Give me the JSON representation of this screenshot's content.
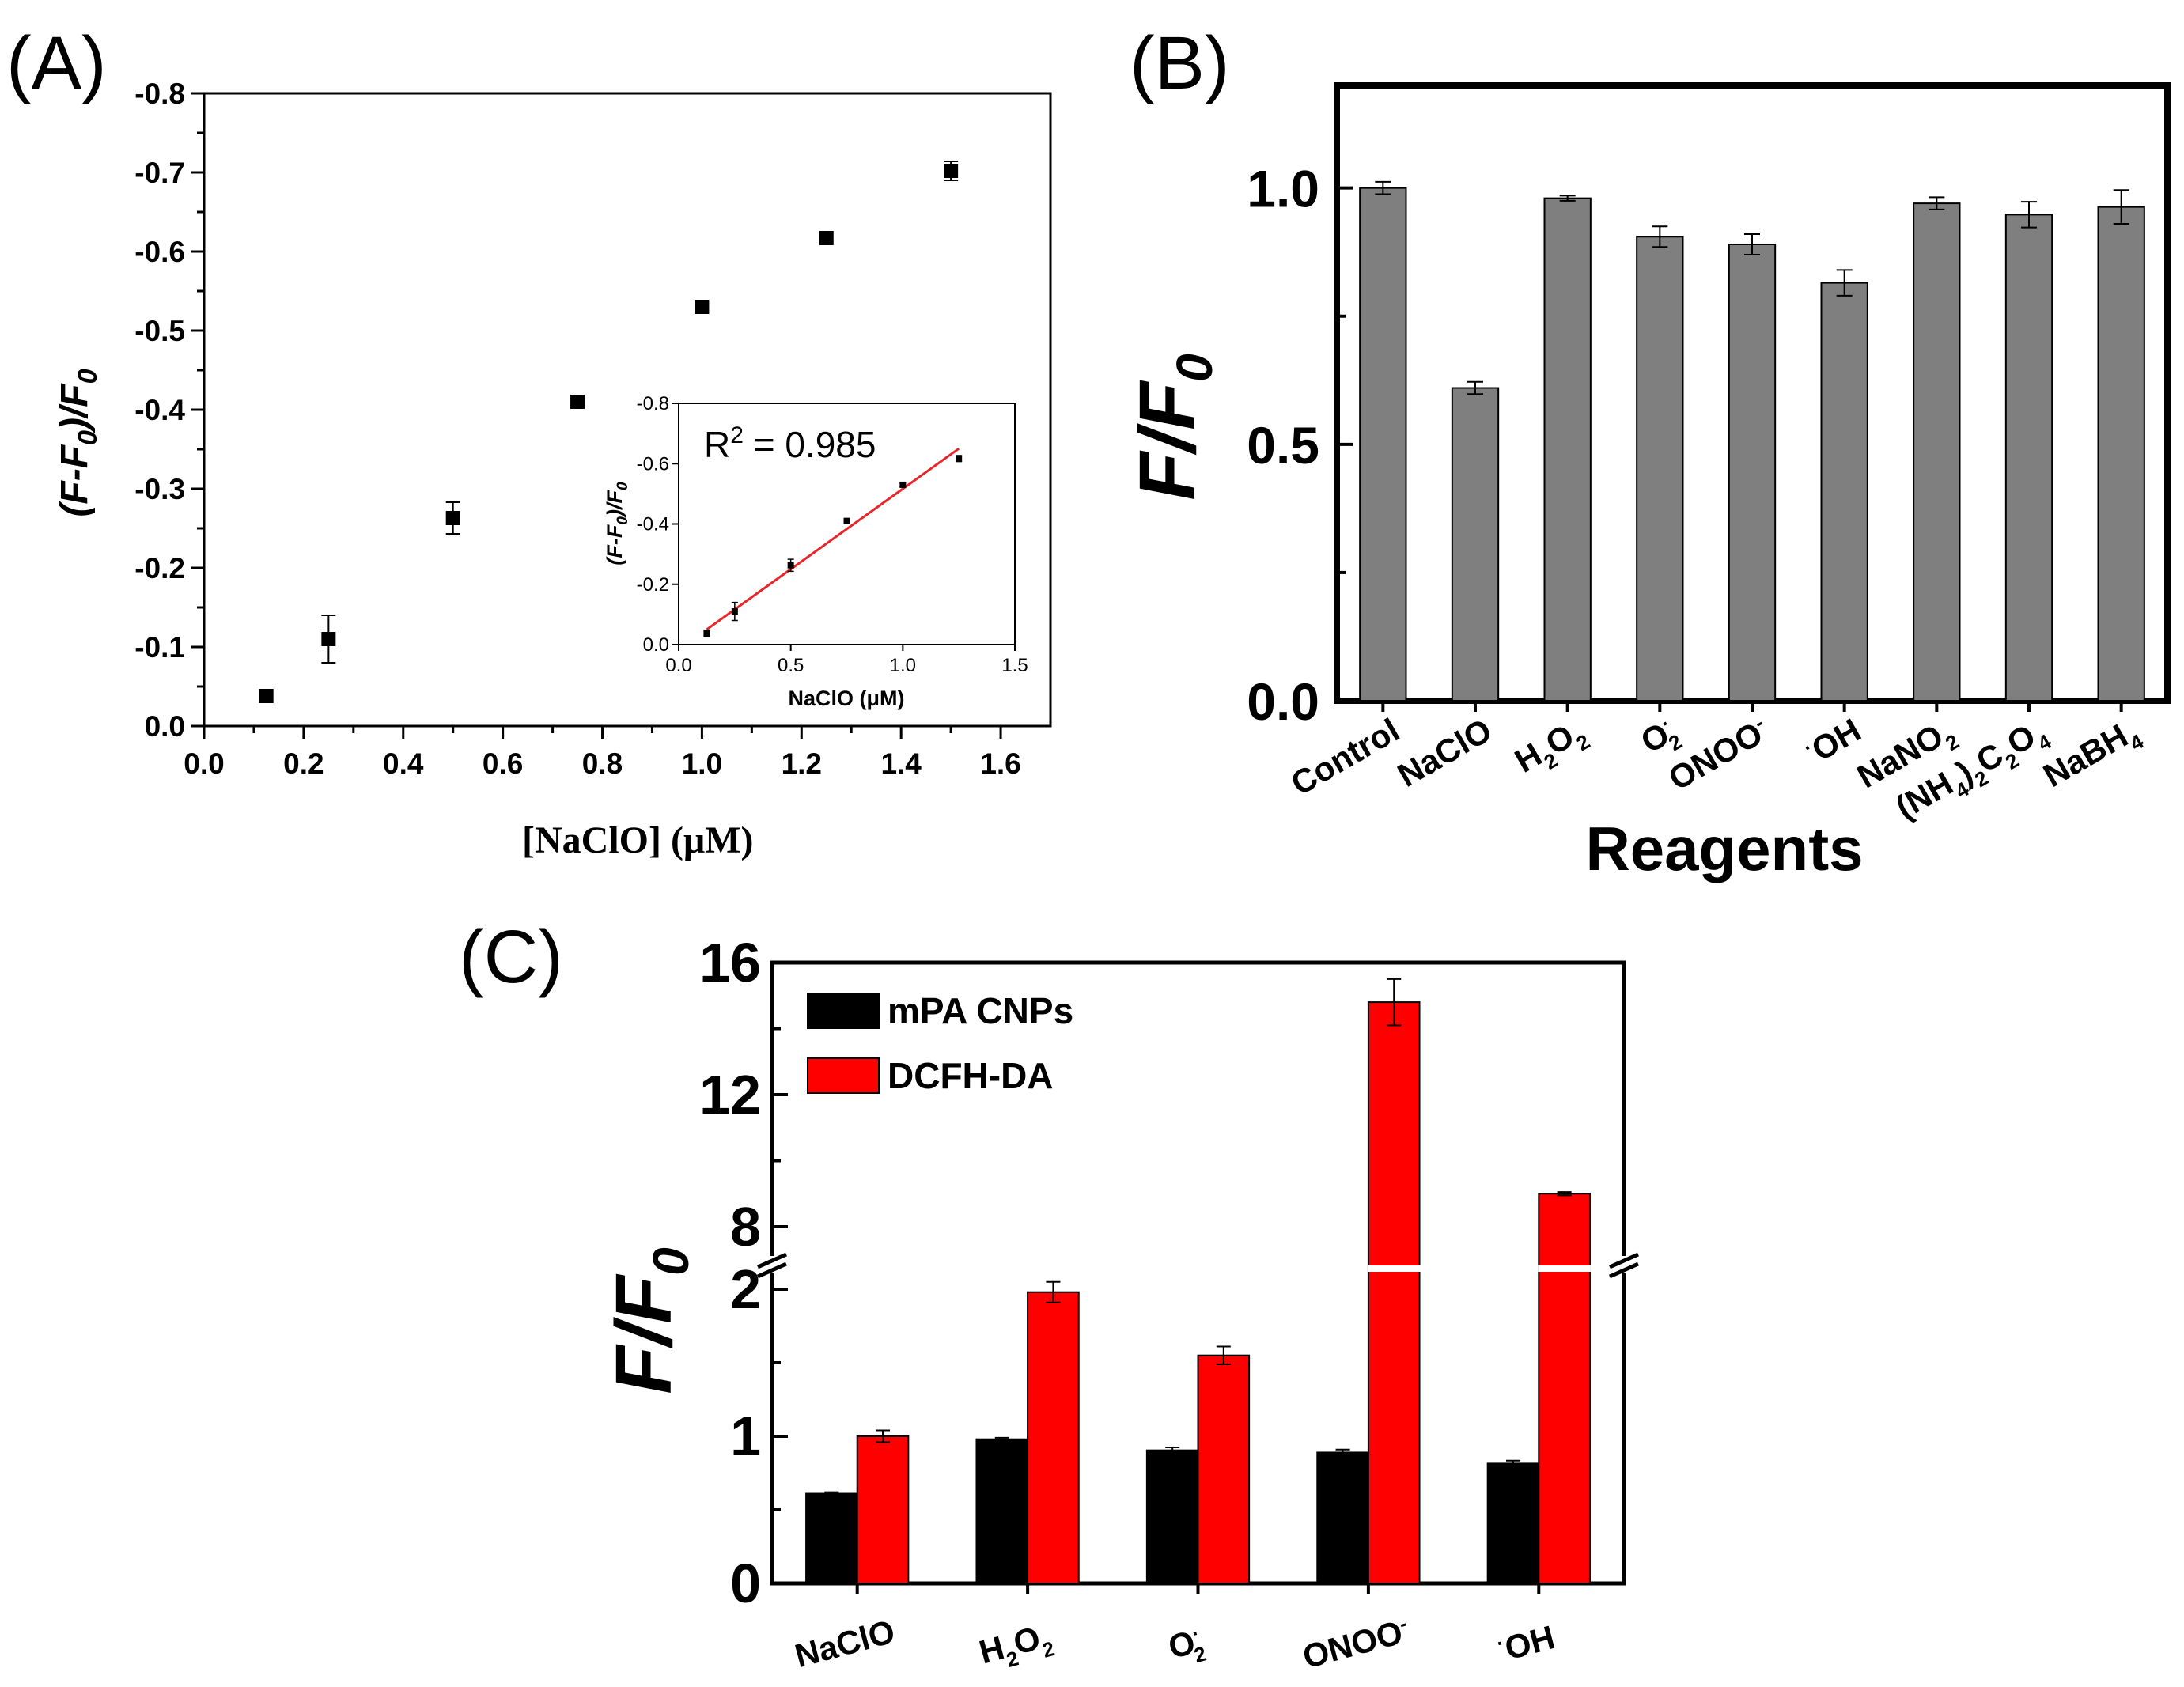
{
  "chart_data": [
    {
      "panel": "(A)",
      "type": "scatter",
      "xlabel": "[NaClO]",
      "xlabel_unit": "(μM)",
      "ylabel_main": "(F-F",
      "ylabel_sub0": "0",
      "ylabel_mid": ")/F",
      "ylabel_sub1": "0",
      "xlim": [
        0.0,
        1.7
      ],
      "ylim": [
        0.0,
        -0.8
      ],
      "xticks": [
        "0.0",
        "0.2",
        "0.4",
        "0.6",
        "0.8",
        "1.0",
        "1.2",
        "1.4",
        "1.6"
      ],
      "yticks": [
        "0.0",
        "-0.1",
        "-0.2",
        "-0.3",
        "-0.4",
        "-0.5",
        "-0.6",
        "-0.7",
        "-0.8"
      ],
      "points": [
        {
          "x": 0.125,
          "y": -0.038,
          "err": 0.005
        },
        {
          "x": 0.25,
          "y": -0.11,
          "err": 0.03
        },
        {
          "x": 0.5,
          "y": -0.263,
          "err": 0.02
        },
        {
          "x": 0.75,
          "y": -0.41,
          "err": 0.007
        },
        {
          "x": 1.0,
          "y": -0.53,
          "err": 0.005
        },
        {
          "x": 1.25,
          "y": -0.617,
          "err": 0.005
        },
        {
          "x": 1.5,
          "y": -0.702,
          "err": 0.012
        }
      ],
      "inset": {
        "annotation_main": "R",
        "annotation_sup": "2",
        "annotation_rest": " = 0.985",
        "xlabel": "NaClO (μM)",
        "ylabel_main": "(F-F",
        "ylabel_sub0": "0",
        "ylabel_mid": ")/F",
        "ylabel_sub1": "0",
        "xlim": [
          0.0,
          1.5
        ],
        "ylim": [
          0.0,
          -0.8
        ],
        "xticks": [
          "0.0",
          "0.5",
          "1.0",
          "1.5"
        ],
        "yticks": [
          "0.0",
          "-0.2",
          "-0.4",
          "-0.6",
          "-0.8"
        ],
        "points": [
          {
            "x": 0.125,
            "y": -0.038,
            "err": 0.01
          },
          {
            "x": 0.25,
            "y": -0.11,
            "err": 0.03
          },
          {
            "x": 0.5,
            "y": -0.263,
            "err": 0.02
          },
          {
            "x": 0.75,
            "y": -0.41,
            "err": 0.008
          },
          {
            "x": 1.0,
            "y": -0.53,
            "err": 0.006
          },
          {
            "x": 1.25,
            "y": -0.617,
            "err": 0.01
          }
        ],
        "fit": {
          "x": [
            0.125,
            1.25
          ],
          "y": [
            -0.05,
            -0.65
          ],
          "color": "#e8262a"
        }
      }
    },
    {
      "panel": "(B)",
      "type": "bar",
      "xlabel": "Reagents",
      "ylabel_main": "F/F",
      "ylabel_sub": "0",
      "ylim": [
        0.0,
        1.2
      ],
      "yticks": [
        "0.0",
        "0.5",
        "1.0"
      ],
      "categories": [
        {
          "label": "Control"
        },
        {
          "label": "NaClO"
        },
        {
          "label": "H",
          "sub": "2",
          "label2": "O",
          "sub2": "2"
        },
        {
          "label": "O",
          "sup": "·",
          "sub": "2"
        },
        {
          "label": "ONOO",
          "sup": "-"
        },
        {
          "label": "OH",
          "pre_sup": "·"
        },
        {
          "label": "NaNO",
          "sub": "2"
        },
        {
          "label": "(NH",
          "sub": "4",
          "label2": ")",
          "sub2": "2",
          "label3": "C",
          "sub3": "2",
          "label4": "O",
          "sub4": "4"
        },
        {
          "label": "NaBH",
          "sub": "4"
        }
      ],
      "values": [
        1.0,
        0.61,
        0.98,
        0.905,
        0.89,
        0.815,
        0.97,
        0.948,
        0.963
      ],
      "errors": [
        0.012,
        0.012,
        0.005,
        0.02,
        0.02,
        0.025,
        0.012,
        0.025,
        0.033
      ],
      "bar_color": "#7f7f7f"
    },
    {
      "panel": "(C)",
      "type": "bar",
      "ylabel_main": "F/F",
      "ylabel_sub": "0",
      "yticks_lower": [
        "0",
        "1",
        "2"
      ],
      "yticks_upper": [
        "8",
        "12",
        "16"
      ],
      "ylim_lower": [
        0,
        2.1
      ],
      "ylim_upper": [
        7.2,
        16
      ],
      "categories": [
        {
          "label": "NaClO"
        },
        {
          "label": "H",
          "sub": "2",
          "label2": "O",
          "sub2": "2"
        },
        {
          "label": "O",
          "sup": "·",
          "sub": "2"
        },
        {
          "label": "ONOO",
          "sup": "-"
        },
        {
          "label": "OH",
          "pre_sup": "·"
        }
      ],
      "series": [
        {
          "name": "mPA CNPs",
          "color": "#000000",
          "values": [
            0.61,
            0.98,
            0.905,
            0.89,
            0.815
          ],
          "errors": [
            0.01,
            0.01,
            0.02,
            0.02,
            0.02
          ]
        },
        {
          "name": "DCFH-DA",
          "color": "#ff0000",
          "values": [
            1.0,
            1.98,
            1.55,
            14.8,
            9.0
          ],
          "errors": [
            0.04,
            0.07,
            0.06,
            0.7,
            0.05
          ]
        }
      ],
      "legend_position": "top-left"
    }
  ]
}
